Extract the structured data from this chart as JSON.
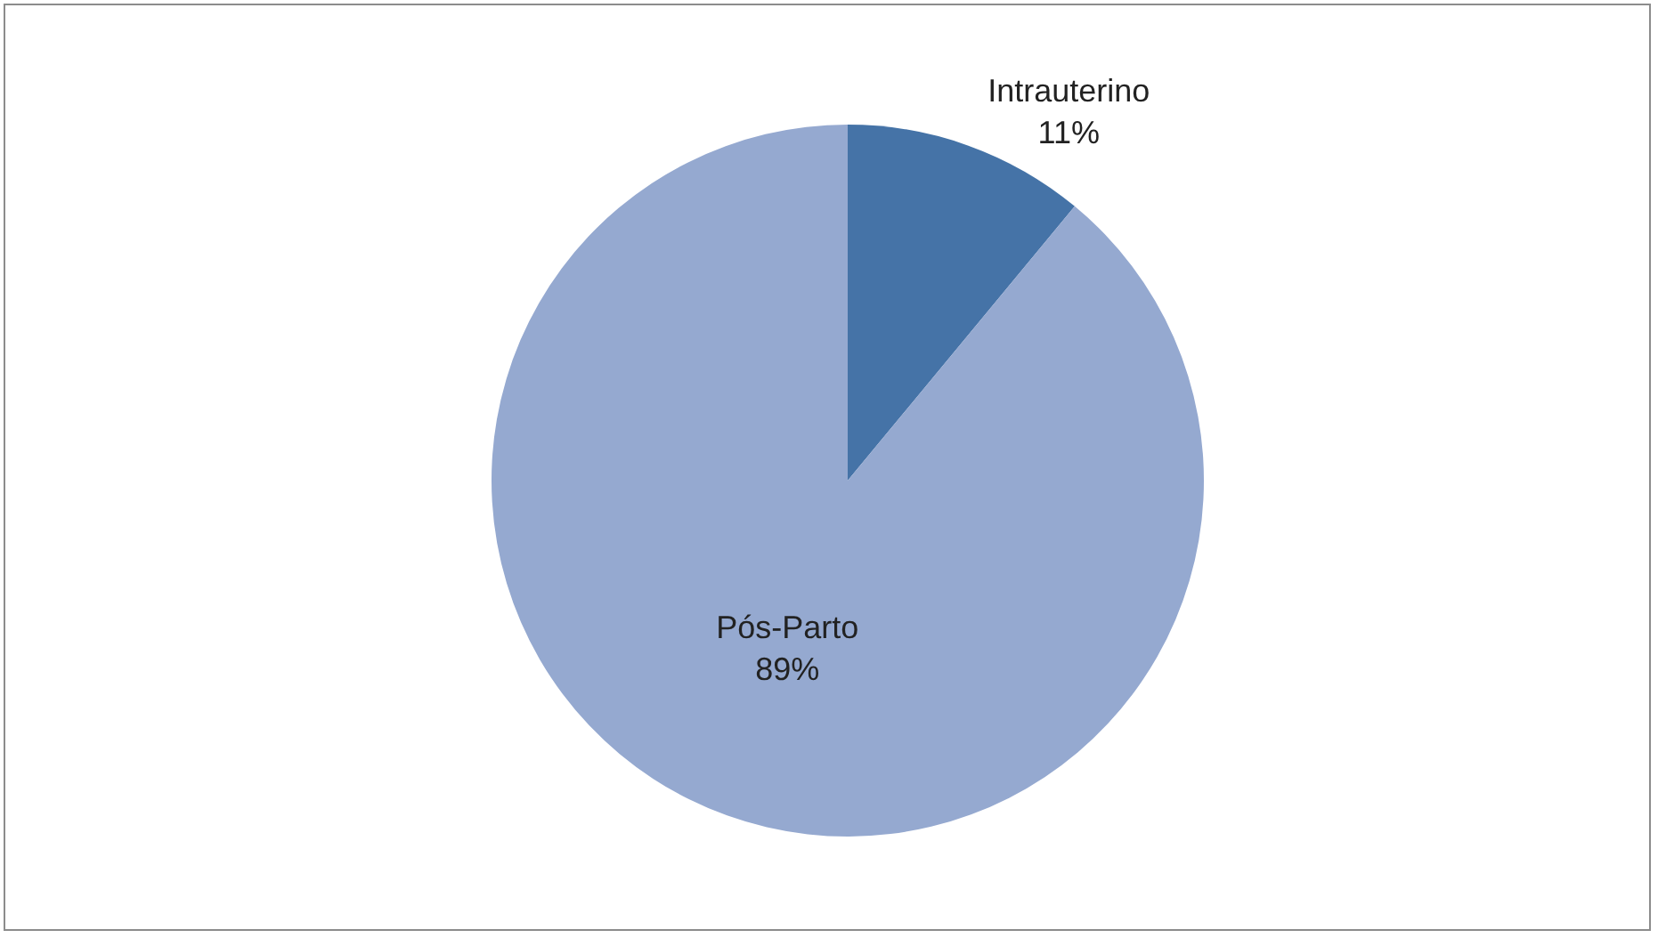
{
  "chart_data": {
    "type": "pie",
    "categories": [
      "Intrauterino",
      "Pós-Parto"
    ],
    "values": [
      11,
      89
    ],
    "value_labels": [
      "11%",
      "89%"
    ],
    "colors": [
      "#4573a7",
      "#95a9d0"
    ]
  }
}
